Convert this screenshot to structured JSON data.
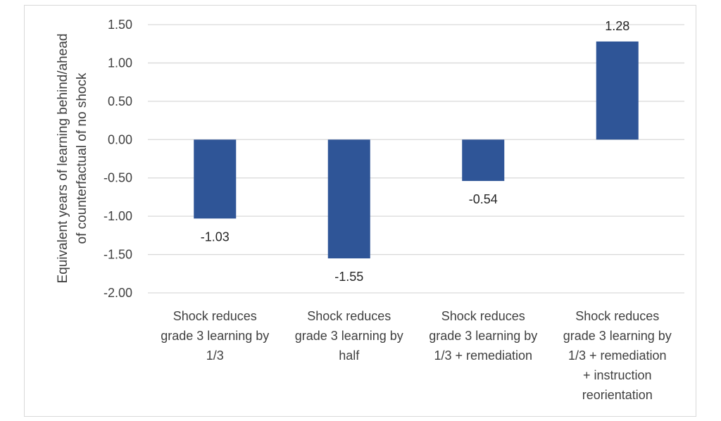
{
  "chart_data": {
    "type": "bar",
    "categories": [
      [
        "Shock reduces",
        "grade 3 learning by",
        "1/3"
      ],
      [
        "Shock reduces",
        "grade 3 learning by",
        "half"
      ],
      [
        "Shock reduces",
        "grade 3 learning by",
        "1/3 + remediation"
      ],
      [
        "Shock reduces",
        "grade 3 learning by",
        "1/3 + remediation",
        "+ instruction",
        "reorientation"
      ]
    ],
    "values": [
      -1.03,
      -1.55,
      -0.54,
      1.28
    ],
    "data_labels": [
      "-1.03",
      "-1.55",
      "-0.54",
      "1.28"
    ],
    "ylabel_lines": [
      "Equivalent years of learning behind/ahead",
      "of counterfactual of no shock"
    ],
    "ylim": [
      -2.0,
      1.5
    ],
    "yticks": [
      1.5,
      1.0,
      0.5,
      0.0,
      -0.5,
      -1.0,
      -1.5,
      -2.0
    ],
    "ytick_labels": [
      "1.50",
      "1.00",
      "0.50",
      "0.00",
      "-0.50",
      "-1.00",
      "-1.50",
      "-2.00"
    ],
    "grid": true,
    "bar_color": "#2f5597",
    "grid_color": "#d9d9d9"
  }
}
